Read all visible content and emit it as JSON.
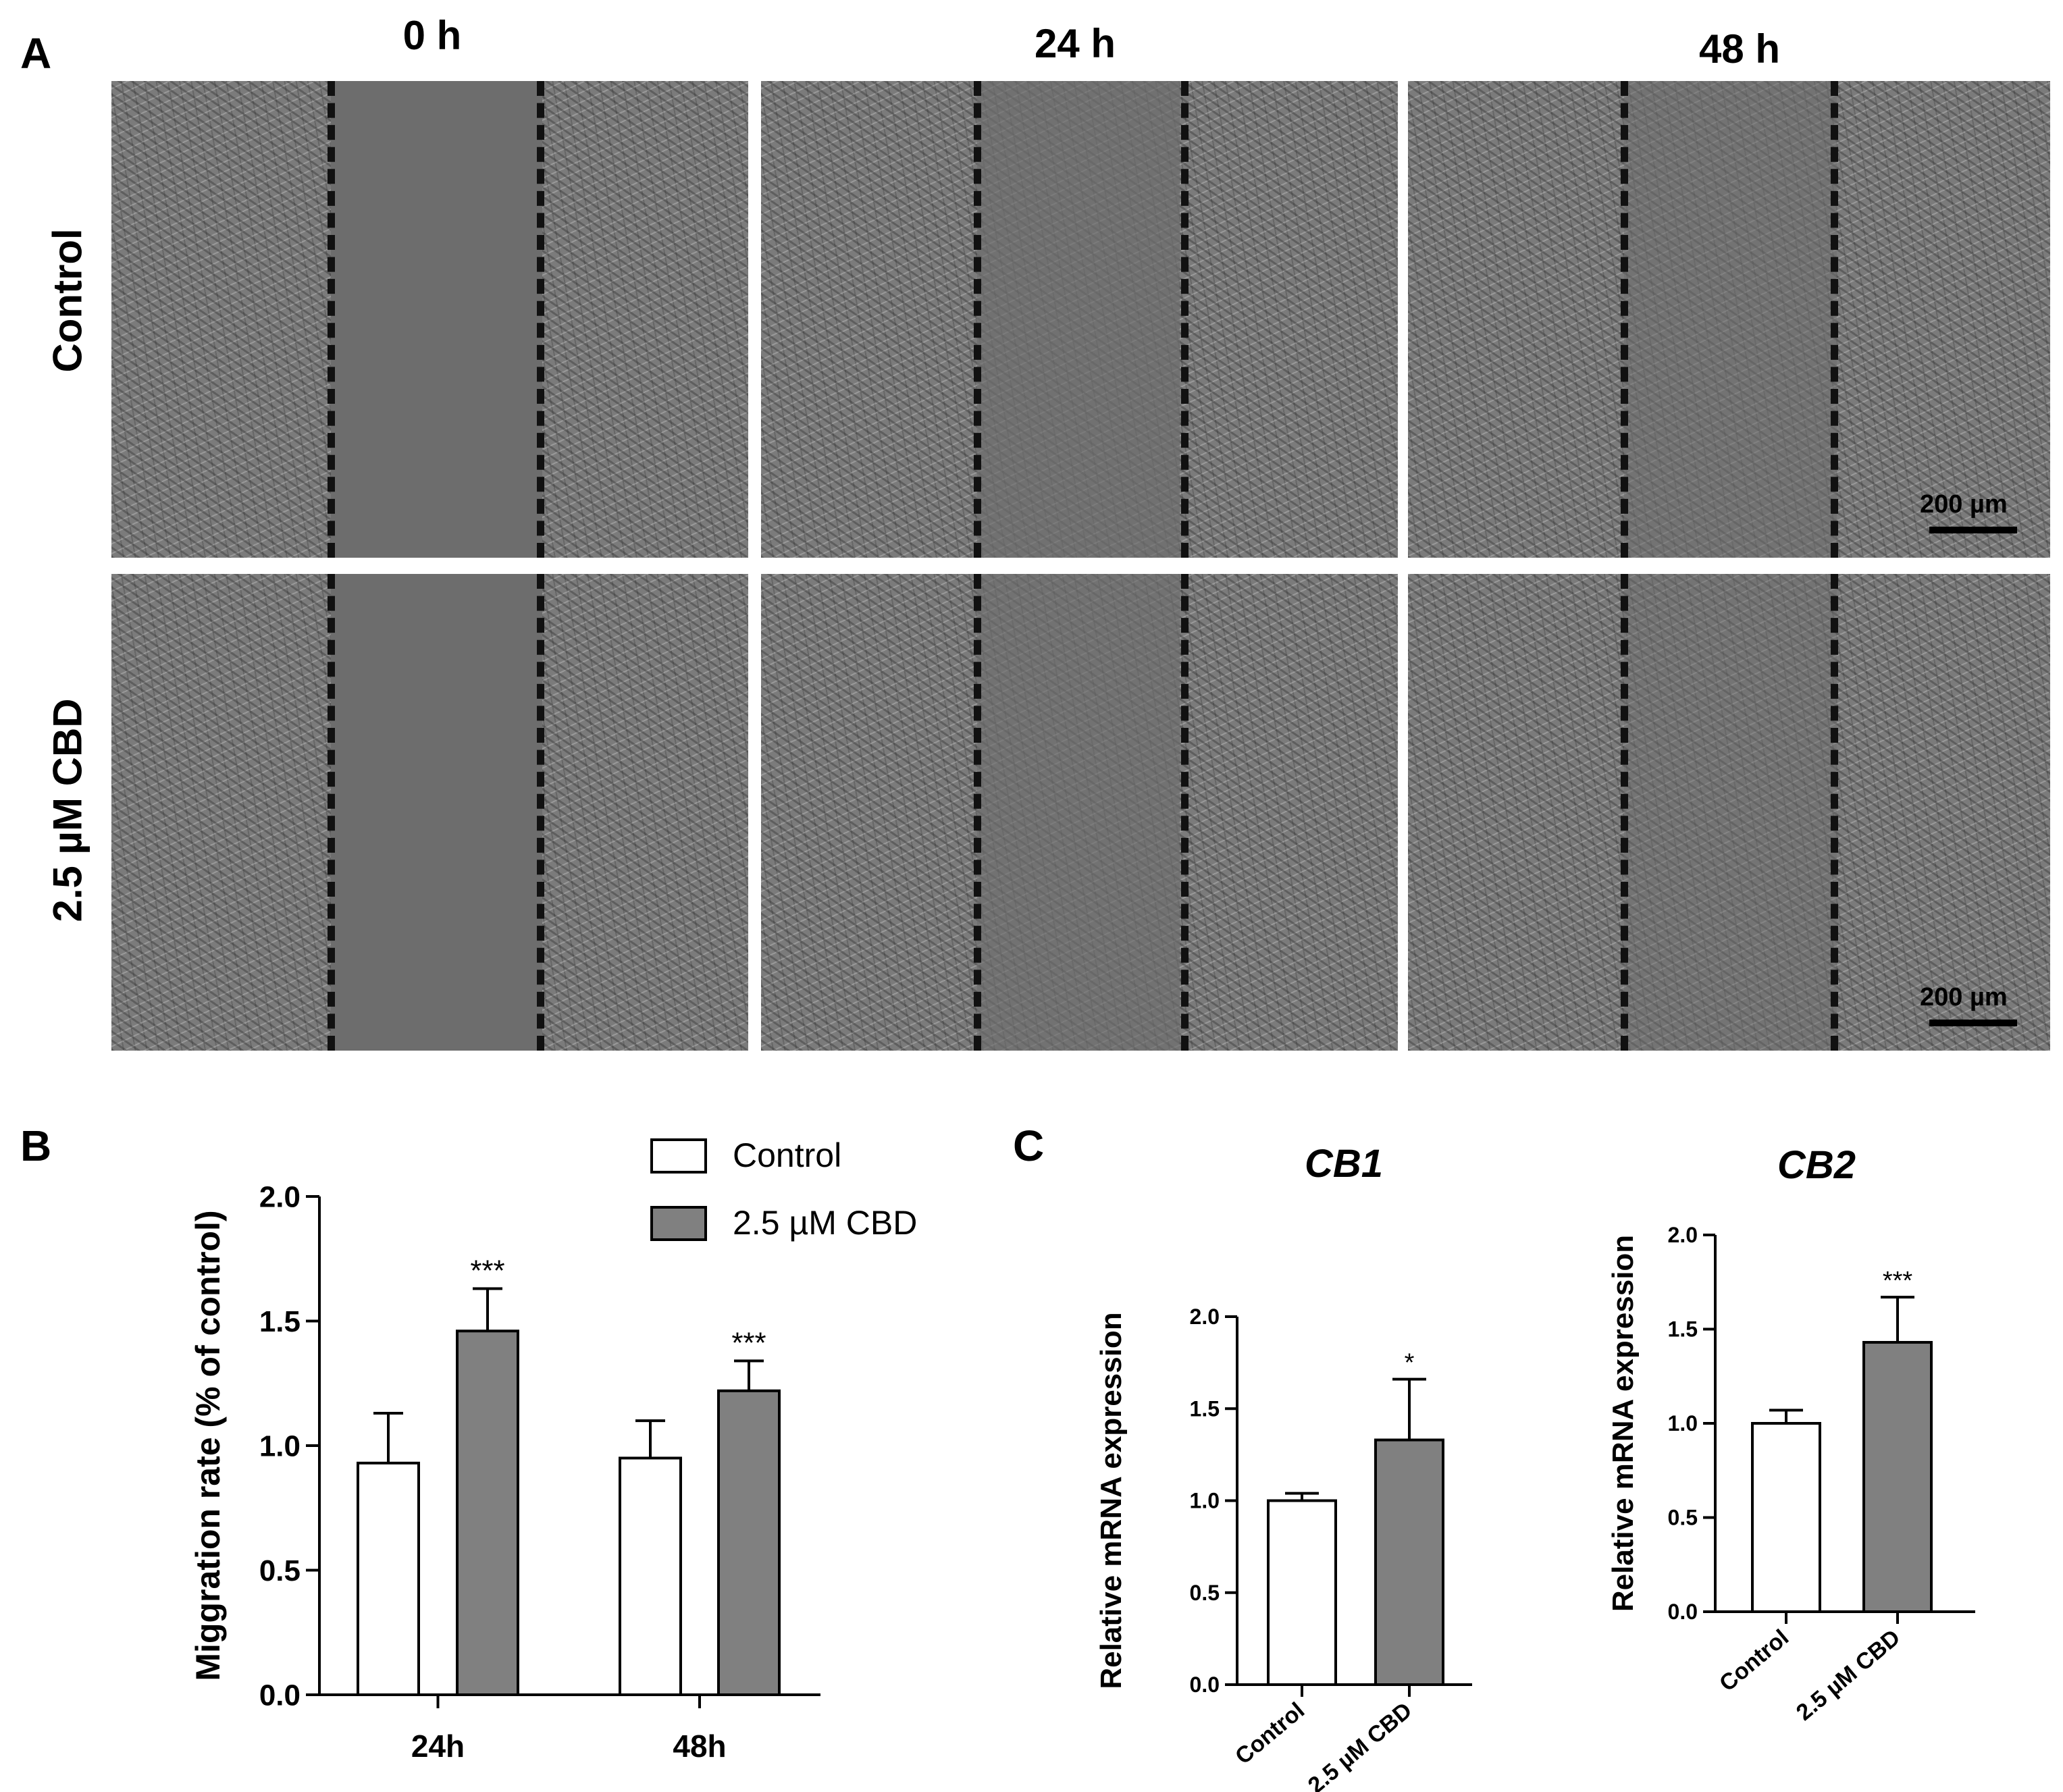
{
  "panel_labels": {
    "a": "A",
    "b": "B",
    "c": "C"
  },
  "panel_a": {
    "columns": [
      "0 h",
      "24 h",
      "48 h"
    ],
    "rows": [
      "Control",
      "2.5 µM CBD"
    ],
    "scale_bar": "200 µm"
  },
  "chart_data": [
    {
      "type": "bar",
      "panel": "B",
      "ylabel": "Miggration rate (% of control)",
      "categories": [
        "24h",
        "48h"
      ],
      "ylim": [
        0,
        2.0
      ],
      "yticks": [
        "0.0",
        "0.5",
        "1.0",
        "1.5",
        "2.0"
      ],
      "series": [
        {
          "name": "Control",
          "values": [
            0.93,
            0.95
          ],
          "errors": [
            0.2,
            0.15
          ],
          "color": "#ffffff"
        },
        {
          "name": "2.5 µM CBD",
          "values": [
            1.46,
            1.22
          ],
          "errors": [
            0.17,
            0.12
          ],
          "color": "#808080"
        }
      ],
      "annotations": [
        "***",
        "***"
      ],
      "legend_position": "top-right"
    },
    {
      "type": "bar",
      "panel": "C",
      "title": "CB1",
      "ylabel": "Relative mRNA expression",
      "categories": [
        "Control",
        "2.5 µM CBD"
      ],
      "values": [
        1.0,
        1.33
      ],
      "errors": [
        0.04,
        0.33
      ],
      "colors": [
        "#ffffff",
        "#808080"
      ],
      "ylim": [
        0,
        2.0
      ],
      "yticks": [
        "0.0",
        "0.5",
        "1.0",
        "1.5",
        "2.0"
      ],
      "annotations": [
        "",
        "*"
      ]
    },
    {
      "type": "bar",
      "panel": "C",
      "title": "CB2",
      "ylabel": "Relative mRNA expression",
      "categories": [
        "Control",
        "2.5 µM CBD"
      ],
      "values": [
        1.0,
        1.43
      ],
      "errors": [
        0.07,
        0.24
      ],
      "colors": [
        "#ffffff",
        "#808080"
      ],
      "ylim": [
        0,
        2.0
      ],
      "yticks": [
        "0.0",
        "0.5",
        "1.0",
        "1.5",
        "2.0"
      ],
      "annotations": [
        "",
        "***"
      ]
    }
  ]
}
